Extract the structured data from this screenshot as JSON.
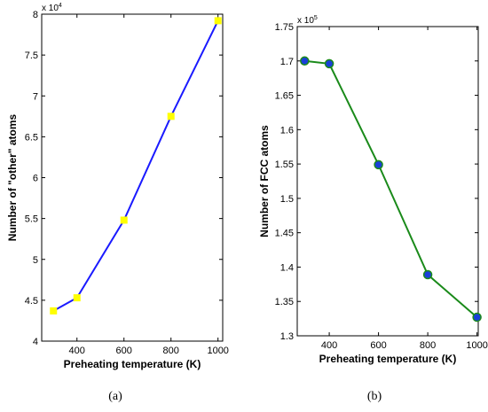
{
  "chart_data": [
    {
      "type": "line",
      "caption": "(a)",
      "multiplier_base": "x 10",
      "multiplier_exp": "4",
      "xlabel": "Preheating temperature (K)",
      "ylabel": "Number of \"other\" atoms",
      "xlim": [
        250,
        1020
      ],
      "ylim": [
        4,
        8
      ],
      "xticks": [
        400,
        600,
        800,
        1000
      ],
      "yticks": [
        4,
        4.5,
        5,
        5.5,
        6,
        6.5,
        7,
        7.5,
        8
      ],
      "ytick_labels": [
        "4",
        "4.5",
        "5",
        "5.5",
        "6",
        "6.5",
        "7",
        "7.5",
        "8"
      ],
      "x": [
        300,
        400,
        600,
        800,
        1000
      ],
      "y": [
        4.37,
        4.53,
        5.48,
        6.75,
        7.92
      ],
      "line_color": "#1a1aff",
      "marker": "square",
      "marker_color": "#ffff00"
    },
    {
      "type": "line",
      "caption": "(b)",
      "multiplier_base": "x 10",
      "multiplier_exp": "5",
      "xlabel": "Preheating temperature (K)",
      "ylabel": "Number of FCC atoms",
      "xlim": [
        270,
        1005
      ],
      "ylim": [
        1.3,
        1.75
      ],
      "xticks": [
        400,
        600,
        800,
        1000
      ],
      "yticks": [
        1.3,
        1.35,
        1.4,
        1.45,
        1.5,
        1.55,
        1.6,
        1.65,
        1.7,
        1.75
      ],
      "ytick_labels": [
        "1.3",
        "1.35",
        "1.4",
        "1.45",
        "1.5",
        "1.55",
        "1.6",
        "1.65",
        "1.7",
        "1.75"
      ],
      "x": [
        300,
        400,
        600,
        800,
        1000
      ],
      "y": [
        1.7,
        1.696,
        1.549,
        1.389,
        1.327
      ],
      "line_color": "#1a8a1a",
      "marker": "circle",
      "marker_color": "#1a3fd9"
    }
  ]
}
